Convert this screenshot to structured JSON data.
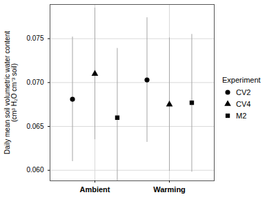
{
  "chart_data": {
    "type": "scatter",
    "categories": [
      "Ambient",
      "Warming"
    ],
    "y_label": "Daily mean soil volumetric water content\n(cm³ H₂O cm⁻³ soil)",
    "ylim": [
      0.0588,
      0.0789
    ],
    "yticks": [
      {
        "value": 0.06,
        "label": "0.060"
      },
      {
        "value": 0.065,
        "label": "0.065"
      },
      {
        "value": 0.07,
        "label": "0.070"
      },
      {
        "value": 0.075,
        "label": "0.075"
      }
    ],
    "grid": true,
    "legend": "right",
    "legend_title": "Experiment",
    "series": [
      {
        "name": "CV2",
        "color": "#000000",
        "marker": "circle",
        "values": [
          0.0681,
          0.0703
        ],
        "error_low": [
          0.061,
          0.0632
        ],
        "error_high": [
          0.0752,
          0.0774
        ]
      },
      {
        "name": "CV4",
        "color": "#000000",
        "marker": "triangle",
        "values": [
          0.071,
          0.0675
        ],
        "error_low": [
          0.0635,
          0.0599
        ],
        "error_high": [
          0.0785,
          0.0751
        ]
      },
      {
        "name": "M2",
        "color": "#000000",
        "marker": "square",
        "values": [
          0.066,
          0.0677
        ],
        "error_low": [
          0.0582,
          0.0598
        ],
        "error_high": [
          0.0739,
          0.0755
        ]
      }
    ]
  }
}
